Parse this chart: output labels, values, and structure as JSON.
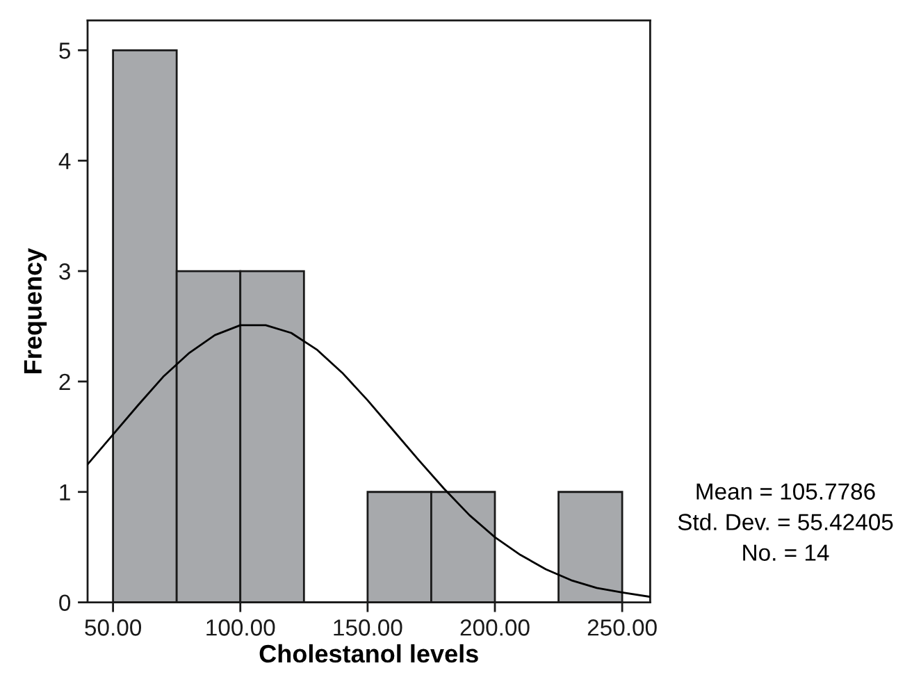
{
  "chart_data": {
    "type": "histogram",
    "xlabel": "Cholestanol levels",
    "ylabel": "Frequency",
    "bins": [
      50,
      75,
      100,
      125,
      150,
      175,
      200,
      225,
      250
    ],
    "values": [
      5,
      3,
      3,
      0,
      1,
      1,
      0,
      1
    ],
    "color": "#a7a9ac",
    "series": [
      {
        "type": "line",
        "color": "#000000",
        "x": [
          40,
          50,
          60,
          70,
          80,
          90,
          100,
          110,
          120,
          130,
          140,
          150,
          160,
          170,
          180,
          190,
          200,
          210,
          220,
          230,
          240,
          250,
          261
        ],
        "values": [
          1.25,
          1.52,
          1.79,
          2.05,
          2.26,
          2.42,
          2.51,
          2.51,
          2.44,
          2.29,
          2.08,
          1.83,
          1.56,
          1.29,
          1.03,
          0.79,
          0.59,
          0.43,
          0.3,
          0.2,
          0.13,
          0.09,
          0.05
        ]
      }
    ],
    "xlim": [
      40,
      261
    ],
    "ylim": [
      0,
      5.27
    ],
    "xticks": [
      {
        "value": 50,
        "label": "50.00"
      },
      {
        "value": 100,
        "label": "100.00"
      },
      {
        "value": 150,
        "label": "150.00"
      },
      {
        "value": 200,
        "label": "200.00"
      },
      {
        "value": 250,
        "label": "250.00"
      }
    ],
    "yticks": [
      0,
      1,
      2,
      3,
      4,
      5
    ],
    "grid": false,
    "legend": false,
    "annotations": [
      "Mean = 105.7786",
      "Std. Dev. = 55.42405",
      "No. = 14"
    ]
  }
}
